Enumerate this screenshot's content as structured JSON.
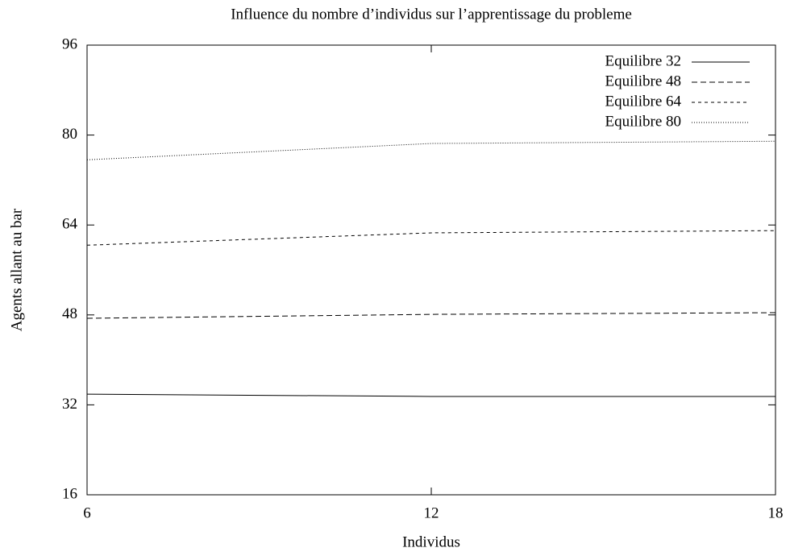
{
  "chart_data": {
    "type": "line",
    "title": "Influence du nombre d’individus sur l’apprentissage du probleme",
    "x_label": "Individus",
    "y_label": "Agents allant au bar",
    "x": [
      6,
      12,
      18
    ],
    "series": [
      {
        "name": "Equilibre 32",
        "color": "#000000",
        "dash": "none",
        "values": [
          33.9,
          33.5,
          33.5
        ]
      },
      {
        "name": "Equilibre 48",
        "color": "#000000",
        "dash": "7,4",
        "values": [
          47.4,
          48.1,
          48.4
        ]
      },
      {
        "name": "Equilibre 64",
        "color": "#000000",
        "dash": "4,4",
        "values": [
          60.4,
          62.6,
          63.0
        ]
      },
      {
        "name": "Equilibre 80",
        "color": "#000000",
        "dash": "1,2",
        "values": [
          75.6,
          78.5,
          78.9
        ]
      }
    ],
    "xlim": [
      6,
      18
    ],
    "xticks": [
      6,
      12,
      18
    ],
    "ylim": [
      16,
      96
    ],
    "yticks": [
      16,
      32,
      48,
      64,
      80,
      96
    ],
    "grid": false,
    "legend": "top-right"
  }
}
